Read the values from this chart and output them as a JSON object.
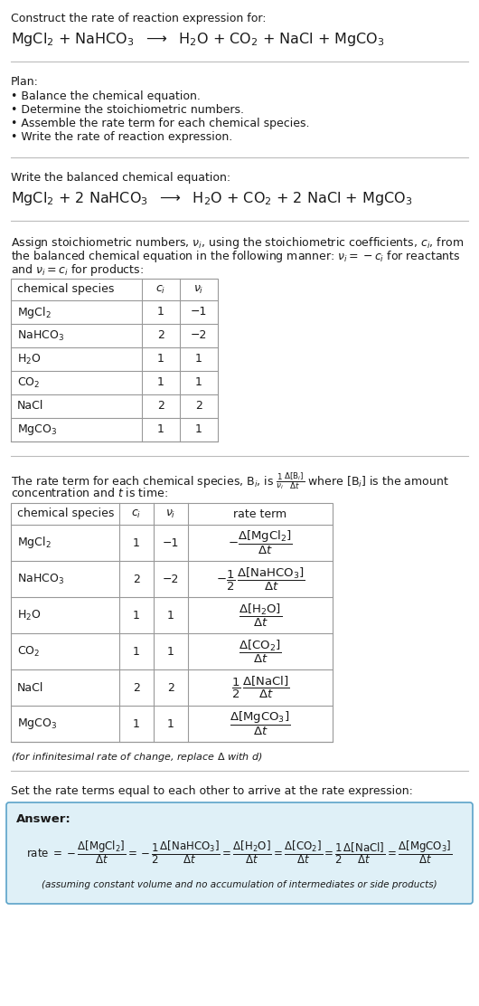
{
  "title_line1": "Construct the rate of reaction expression for:",
  "bg_color": "#ffffff",
  "table_border_color": "#999999",
  "answer_box_color": "#dff0f7",
  "answer_box_border": "#5ba3c9",
  "text_color": "#1a1a1a",
  "font_size": 9.0,
  "small_font": 8.0,
  "species_map": {
    "MgCl_2": "MgCl$_2$",
    "NaHCO_3": "NaHCO$_3$",
    "H_2O": "H$_2$O",
    "CO_2": "CO$_2$",
    "NaCl": "NaCl",
    "MgCO_3": "MgCO$_3$"
  },
  "table1_rows": [
    [
      "MgCl_2",
      "1",
      "−1"
    ],
    [
      "NaHCO_3",
      "2",
      "−2"
    ],
    [
      "H_2O",
      "1",
      "1"
    ],
    [
      "CO_2",
      "1",
      "1"
    ],
    [
      "NaCl",
      "2",
      "2"
    ],
    [
      "MgCO_3",
      "1",
      "1"
    ]
  ],
  "table2_rows": [
    [
      "MgCl_2",
      "1",
      "−1"
    ],
    [
      "NaHCO_3",
      "2",
      "−2"
    ],
    [
      "H_2O",
      "1",
      "1"
    ],
    [
      "CO_2",
      "1",
      "1"
    ],
    [
      "NaCl",
      "2",
      "2"
    ],
    [
      "MgCO_3",
      "1",
      "1"
    ]
  ],
  "plan_items": [
    "• Balance the chemical equation.",
    "• Determine the stoichiometric numbers.",
    "• Assemble the rate term for each chemical species.",
    "• Write the rate of reaction expression."
  ],
  "answer_note": "(assuming constant volume and no accumulation of intermediates or side products)"
}
